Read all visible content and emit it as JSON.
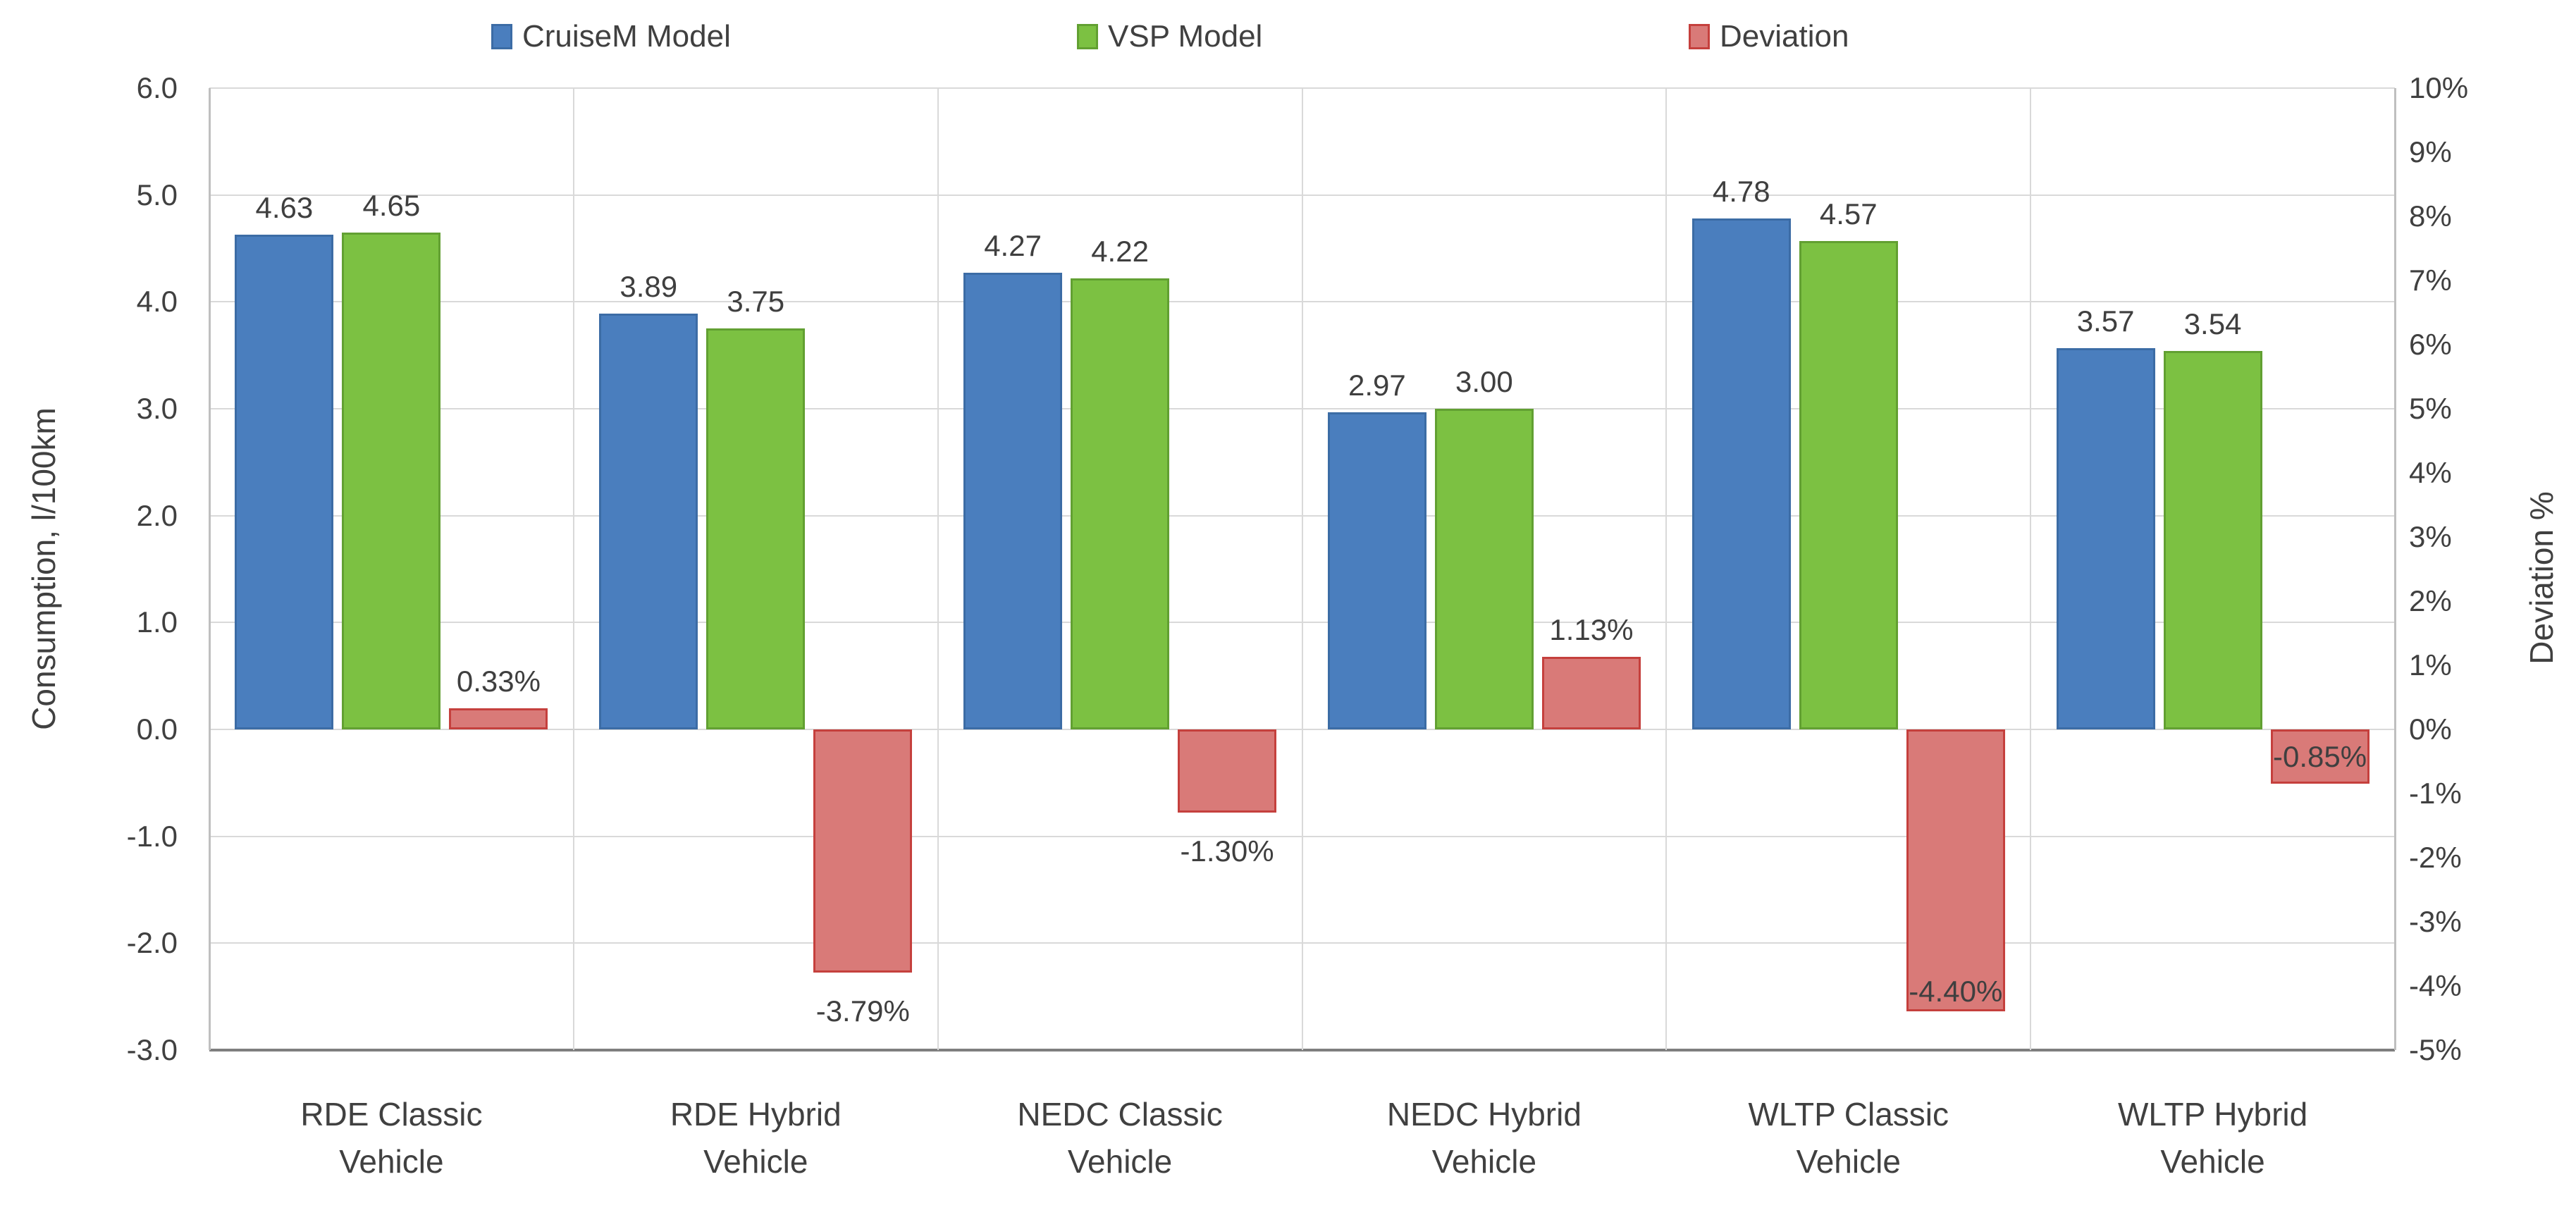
{
  "chart": {
    "legend": [
      {
        "label": "CruiseM Model",
        "fill": "#4a7ebe",
        "border": "#3c6ca5"
      },
      {
        "label": "VSP Model",
        "fill": "#7cc142",
        "border": "#62a032"
      },
      {
        "label": "Deviation",
        "fill": "#d97a78",
        "border": "#c5403d"
      }
    ],
    "left_axis": {
      "title": "Consumption, l/100km",
      "ticks": [
        "6.0",
        "5.0",
        "4.0",
        "3.0",
        "2.0",
        "1.0",
        "0.0",
        "-1.0",
        "-2.0",
        "-3.0"
      ]
    },
    "right_axis": {
      "title": "Deviation %",
      "ticks": [
        "10%",
        "9%",
        "8%",
        "7%",
        "6%",
        "5%",
        "4%",
        "3%",
        "2%",
        "1%",
        "0%",
        "-1%",
        "-2%",
        "-3%",
        "-4%",
        "-5%"
      ]
    }
  },
  "chart_data": {
    "type": "bar",
    "title": "",
    "categories": [
      "RDE Classic Vehicle",
      "RDE Hybrid Vehicle",
      "NEDC Classic Vehicle",
      "NEDC Hybrid Vehicle",
      "WLTP Classic Vehicle",
      "WLTP Hybrid Vehicle"
    ],
    "category_lines": [
      [
        "RDE Classic",
        "Vehicle"
      ],
      [
        "RDE Hybrid",
        "Vehicle"
      ],
      [
        "NEDC Classic",
        "Vehicle"
      ],
      [
        "NEDC Hybrid",
        "Vehicle"
      ],
      [
        "WLTP Classic",
        "Vehicle"
      ],
      [
        "WLTP Hybrid",
        "Vehicle"
      ]
    ],
    "series": [
      {
        "name": "CruiseM Model",
        "axis": "left",
        "values": [
          4.63,
          3.89,
          4.27,
          2.97,
          4.78,
          3.57
        ],
        "labels": [
          "4.63",
          "3.89",
          "4.27",
          "2.97",
          "4.78",
          "3.57"
        ]
      },
      {
        "name": "VSP Model",
        "axis": "left",
        "values": [
          4.65,
          3.75,
          4.22,
          3.0,
          4.57,
          3.54
        ],
        "labels": [
          "4.65",
          "3.75",
          "4.22",
          "3.00",
          "4.57",
          "3.54"
        ]
      },
      {
        "name": "Deviation",
        "axis": "right",
        "values": [
          0.33,
          -3.79,
          -1.3,
          1.13,
          -4.4,
          -0.85
        ],
        "labels": [
          "0.33%",
          "-3.79%",
          "-1.30%",
          "1.13%",
          "-4.40%",
          "-0.85%"
        ],
        "label_placement": [
          "above",
          "below",
          "below",
          "above",
          "inside-end",
          "center"
        ]
      }
    ],
    "left_ylim": [
      -3,
      6
    ],
    "right_ylim": [
      -5,
      10
    ],
    "left_tick_step": 1.0,
    "right_tick_step": 1,
    "grid": true,
    "legend_position": "top",
    "ylabel_left": "Consumption, l/100km",
    "ylabel_right": "Deviation %"
  }
}
